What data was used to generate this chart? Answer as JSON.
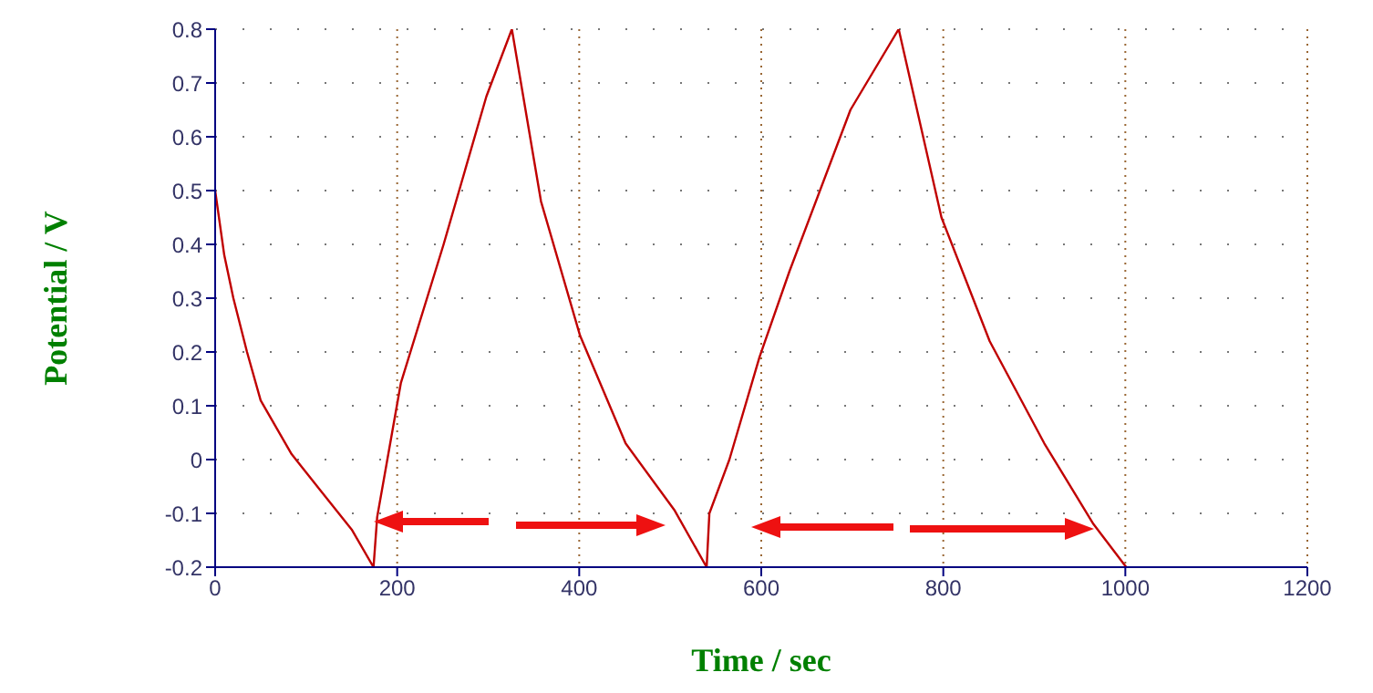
{
  "chart_data": {
    "type": "line",
    "xlabel": "Time / sec",
    "ylabel": "Potential / V",
    "xlim": [
      0,
      1200
    ],
    "xticks": [
      0,
      200,
      400,
      600,
      800,
      1000,
      1200
    ],
    "ylim": [
      -0.2,
      0.8
    ],
    "yticks": [
      -0.2,
      -0.1,
      0,
      0.1,
      0.2,
      0.3,
      0.4,
      0.5,
      0.6,
      0.7,
      0.8
    ],
    "grid": true,
    "line_style": "solid",
    "marker": "none",
    "series": [
      {
        "color": "#c00000",
        "x": [
          0,
          10,
          20,
          35,
          50,
          84,
          117,
          150,
          174,
          178,
          204,
          251,
          298,
          326,
          358,
          401,
          451,
          505,
          540,
          543,
          565,
          598,
          631,
          698,
          751,
          798,
          851,
          911,
          965,
          1001
        ],
        "values": [
          0.5,
          0.38,
          0.3,
          0.2,
          0.11,
          0.01,
          -0.06,
          -0.13,
          -0.2,
          -0.107,
          0.142,
          0.4,
          0.675,
          0.8,
          0.48,
          0.23,
          0.03,
          -0.095,
          -0.2,
          -0.1,
          0,
          0.19,
          0.35,
          0.65,
          0.8,
          0.45,
          0.22,
          0.03,
          -0.12,
          -0.2
        ]
      }
    ]
  }
}
